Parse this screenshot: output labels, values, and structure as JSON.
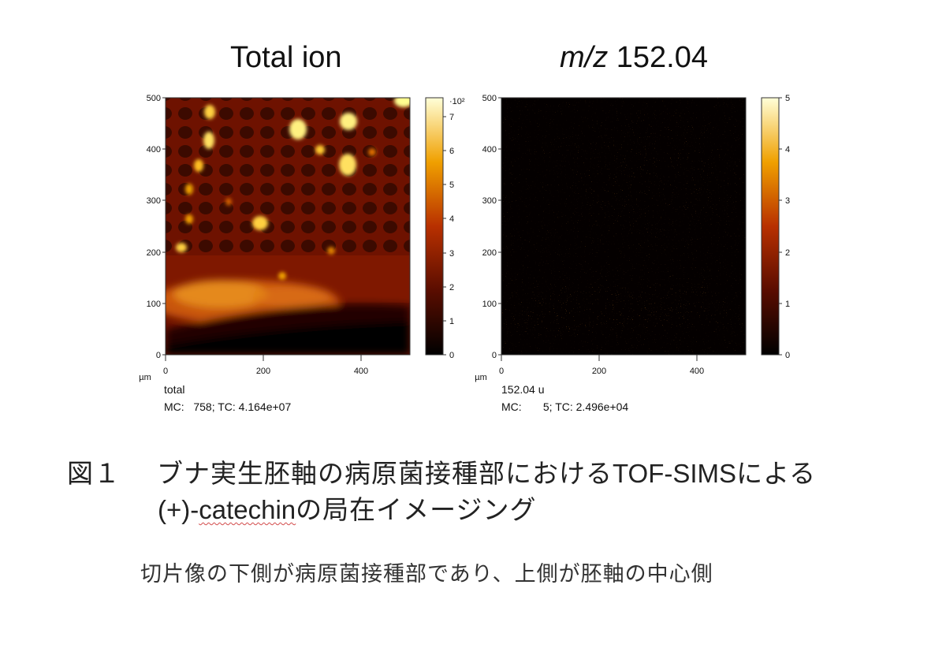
{
  "panels": [
    {
      "title": "Total ion",
      "y_ticks": [
        "500",
        "400",
        "300",
        "200",
        "100",
        "0"
      ],
      "x_ticks": [
        "0",
        "200",
        "400"
      ],
      "axis_unit": "µm",
      "colorbar_ticks": [
        "7",
        "6",
        "5",
        "4",
        "3",
        "2",
        "1",
        "0"
      ],
      "colorbar_exponent": "·10²",
      "label": "total",
      "stats": "MC:   758; TC: 4.164e+07"
    },
    {
      "title_italic": "m/z",
      "title_rest": " 152.04",
      "y_ticks": [
        "500",
        "400",
        "300",
        "200",
        "100",
        "0"
      ],
      "x_ticks": [
        "0",
        "200",
        "400"
      ],
      "axis_unit": "µm",
      "colorbar_ticks": [
        "5",
        "4",
        "3",
        "2",
        "1",
        "0"
      ],
      "label": "152.04 u",
      "stats": "MC:       5; TC: 2.496e+04"
    }
  ],
  "caption": {
    "figure_label": "図１",
    "line1_a": "ブナ実生胚軸の病原菌接種部における",
    "line1_b": "TOF-SIMS",
    "line1_c": "による",
    "line2_a": "(+)-",
    "line2_b": "catechin",
    "line2_c": "の局在イメージング"
  },
  "note": "切片像の下側が病原菌接種部であり、上側が胚軸の中心側",
  "colors": {
    "heatmap_low": "#000000",
    "heatmap_mid": "#b22a00",
    "heatmap_high": "#ffffcc"
  }
}
